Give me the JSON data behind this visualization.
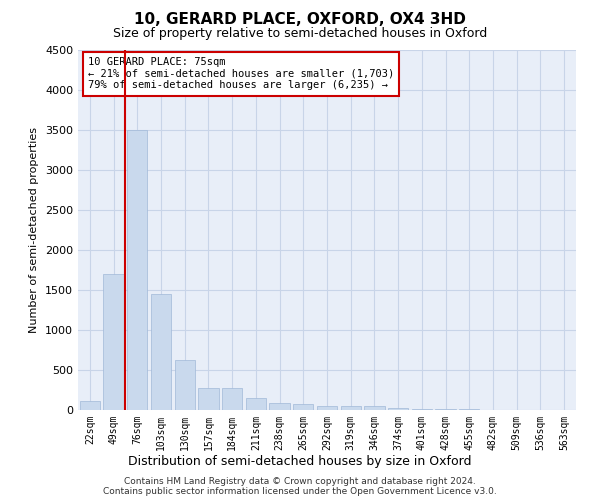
{
  "title": "10, GERARD PLACE, OXFORD, OX4 3HD",
  "subtitle": "Size of property relative to semi-detached houses in Oxford",
  "xlabel": "Distribution of semi-detached houses by size in Oxford",
  "ylabel": "Number of semi-detached properties",
  "categories": [
    "22sqm",
    "49sqm",
    "76sqm",
    "103sqm",
    "130sqm",
    "157sqm",
    "184sqm",
    "211sqm",
    "238sqm",
    "265sqm",
    "292sqm",
    "319sqm",
    "346sqm",
    "374sqm",
    "401sqm",
    "428sqm",
    "455sqm",
    "482sqm",
    "509sqm",
    "536sqm",
    "563sqm"
  ],
  "values": [
    110,
    1700,
    3500,
    1450,
    620,
    280,
    270,
    145,
    90,
    80,
    55,
    50,
    50,
    30,
    15,
    10,
    8,
    5,
    5,
    5,
    5
  ],
  "bar_color": "#c9d9ed",
  "bar_edge_color": "#a0b8d8",
  "vline_index": 2,
  "annotation_title": "10 GERARD PLACE: 75sqm",
  "annotation_smaller": "← 21% of semi-detached houses are smaller (1,703)",
  "annotation_larger": "79% of semi-detached houses are larger (6,235) →",
  "annotation_box_color": "#ffffff",
  "annotation_box_edge": "#cc0000",
  "vline_color": "#cc0000",
  "ylim": [
    0,
    4500
  ],
  "yticks": [
    0,
    500,
    1000,
    1500,
    2000,
    2500,
    3000,
    3500,
    4000,
    4500
  ],
  "grid_color": "#c8d4e8",
  "bg_color": "#e8eef8",
  "footnote1": "Contains HM Land Registry data © Crown copyright and database right 2024.",
  "footnote2": "Contains public sector information licensed under the Open Government Licence v3.0."
}
